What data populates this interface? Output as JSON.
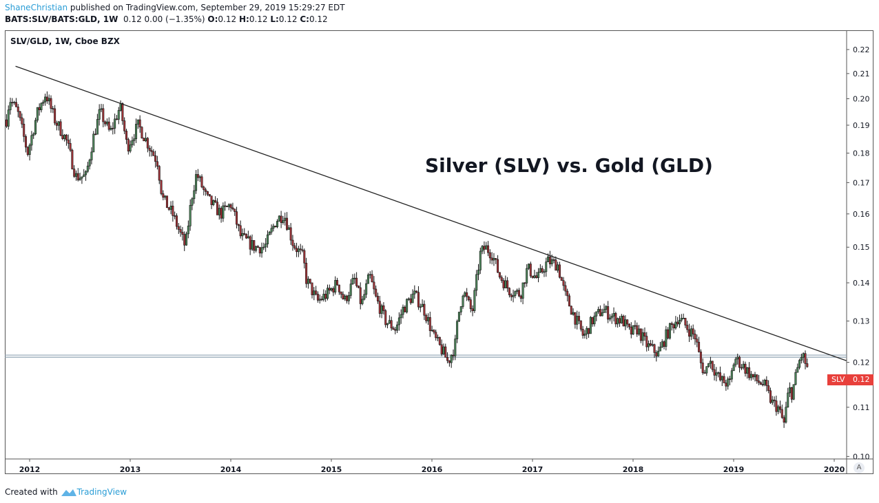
{
  "header": {
    "author": "ShaneChristian",
    "published": "published on TradingView.com, September 29, 2019 15:29:27 EDT",
    "symbol": "BATS:SLV/BATS:GLD, 1W",
    "quote": "0.12 0.00 (−1.35%)",
    "o_label": "O:",
    "o": "0.12",
    "h_label": "H:",
    "h": "0.12",
    "l_label": "L:",
    "l": "0.12",
    "c_label": "C:",
    "c": "0.12"
  },
  "legend": "SLV/GLD, 1W, Cboe BZX",
  "annotation": "Silver (SLV) vs. Gold (GLD)",
  "price_label": {
    "name": "SLV",
    "value": "0.12"
  },
  "auto_scale_button": "A",
  "footer": {
    "prefix": "Created with",
    "brand": "TradingView"
  },
  "colors": {
    "up": "#4f8a5d",
    "down": "#a6353a",
    "wick": "#111111",
    "label": "#e8403b",
    "hline": "#8fa3b3"
  },
  "chart_data": {
    "type": "candlestick",
    "scale": "log",
    "ylim": [
      0.1,
      0.22
    ],
    "xlim": [
      2011.75,
      2020.1
    ],
    "yticks": [
      "0.10",
      "0.11",
      "0.12",
      "0.13",
      "0.14",
      "0.15",
      "0.16",
      "0.17",
      "0.18",
      "0.19",
      "0.20",
      "0.21",
      "0.22"
    ],
    "xticks": [
      "2012",
      "2013",
      "2014",
      "2015",
      "2016",
      "2017",
      "2018",
      "2019",
      "2020"
    ],
    "interval": "1W",
    "close_path": [
      [
        2011.77,
        0.192
      ],
      [
        2011.8,
        0.2
      ],
      [
        2011.88,
        0.195
      ],
      [
        2011.98,
        0.18
      ],
      [
        2012.08,
        0.195
      ],
      [
        2012.16,
        0.202
      ],
      [
        2012.25,
        0.192
      ],
      [
        2012.36,
        0.185
      ],
      [
        2012.46,
        0.172
      ],
      [
        2012.56,
        0.172
      ],
      [
        2012.63,
        0.185
      ],
      [
        2012.7,
        0.195
      ],
      [
        2012.8,
        0.187
      ],
      [
        2012.9,
        0.197
      ],
      [
        2012.97,
        0.182
      ],
      [
        2013.08,
        0.19
      ],
      [
        2013.18,
        0.183
      ],
      [
        2013.27,
        0.177
      ],
      [
        2013.32,
        0.165
      ],
      [
        2013.42,
        0.16
      ],
      [
        2013.55,
        0.15
      ],
      [
        2013.61,
        0.165
      ],
      [
        2013.66,
        0.173
      ],
      [
        2013.76,
        0.165
      ],
      [
        2013.9,
        0.16
      ],
      [
        2014.0,
        0.163
      ],
      [
        2014.1,
        0.153
      ],
      [
        2014.24,
        0.15
      ],
      [
        2014.34,
        0.15
      ],
      [
        2014.45,
        0.158
      ],
      [
        2014.53,
        0.16
      ],
      [
        2014.62,
        0.151
      ],
      [
        2014.72,
        0.147
      ],
      [
        2014.75,
        0.141
      ],
      [
        2014.86,
        0.135
      ],
      [
        2014.96,
        0.137
      ],
      [
        2015.06,
        0.14
      ],
      [
        2015.13,
        0.135
      ],
      [
        2015.23,
        0.141
      ],
      [
        2015.3,
        0.134
      ],
      [
        2015.38,
        0.142
      ],
      [
        2015.44,
        0.136
      ],
      [
        2015.54,
        0.13
      ],
      [
        2015.64,
        0.128
      ],
      [
        2015.71,
        0.133
      ],
      [
        2015.82,
        0.137
      ],
      [
        2015.92,
        0.133
      ],
      [
        2016.02,
        0.126
      ],
      [
        2016.12,
        0.122
      ],
      [
        2016.16,
        0.12
      ],
      [
        2016.23,
        0.124
      ],
      [
        2016.26,
        0.131
      ],
      [
        2016.31,
        0.138
      ],
      [
        2016.4,
        0.132
      ],
      [
        2016.48,
        0.148
      ],
      [
        2016.53,
        0.15
      ],
      [
        2016.6,
        0.148
      ],
      [
        2016.67,
        0.142
      ],
      [
        2016.77,
        0.138
      ],
      [
        2016.88,
        0.137
      ],
      [
        2016.95,
        0.144
      ],
      [
        2017.05,
        0.141
      ],
      [
        2017.15,
        0.146
      ],
      [
        2017.25,
        0.145
      ],
      [
        2017.32,
        0.137
      ],
      [
        2017.42,
        0.131
      ],
      [
        2017.51,
        0.126
      ],
      [
        2017.59,
        0.13
      ],
      [
        2017.7,
        0.133
      ],
      [
        2017.8,
        0.131
      ],
      [
        2017.9,
        0.13
      ],
      [
        2017.97,
        0.127
      ],
      [
        2018.04,
        0.128
      ],
      [
        2018.14,
        0.124
      ],
      [
        2018.25,
        0.122
      ],
      [
        2018.34,
        0.127
      ],
      [
        2018.45,
        0.131
      ],
      [
        2018.55,
        0.128
      ],
      [
        2018.62,
        0.126
      ],
      [
        2018.67,
        0.12
      ],
      [
        2018.72,
        0.117
      ],
      [
        2018.75,
        0.121
      ],
      [
        2018.86,
        0.116
      ],
      [
        2018.96,
        0.115
      ],
      [
        2019.01,
        0.121
      ],
      [
        2019.1,
        0.119
      ],
      [
        2019.21,
        0.116
      ],
      [
        2019.3,
        0.115
      ],
      [
        2019.38,
        0.111
      ],
      [
        2019.44,
        0.11
      ],
      [
        2019.5,
        0.1065
      ],
      [
        2019.55,
        0.114
      ],
      [
        2019.58,
        0.113
      ],
      [
        2019.65,
        0.12
      ],
      [
        2019.68,
        0.122
      ],
      [
        2019.74,
        0.118
      ]
    ],
    "trendline": [
      [
        2011.86,
        0.213
      ],
      [
        2020.12,
        0.1204
      ]
    ],
    "horizontal_lines": [
      0.1217,
      0.1212
    ],
    "last_price": 0.1165
  }
}
